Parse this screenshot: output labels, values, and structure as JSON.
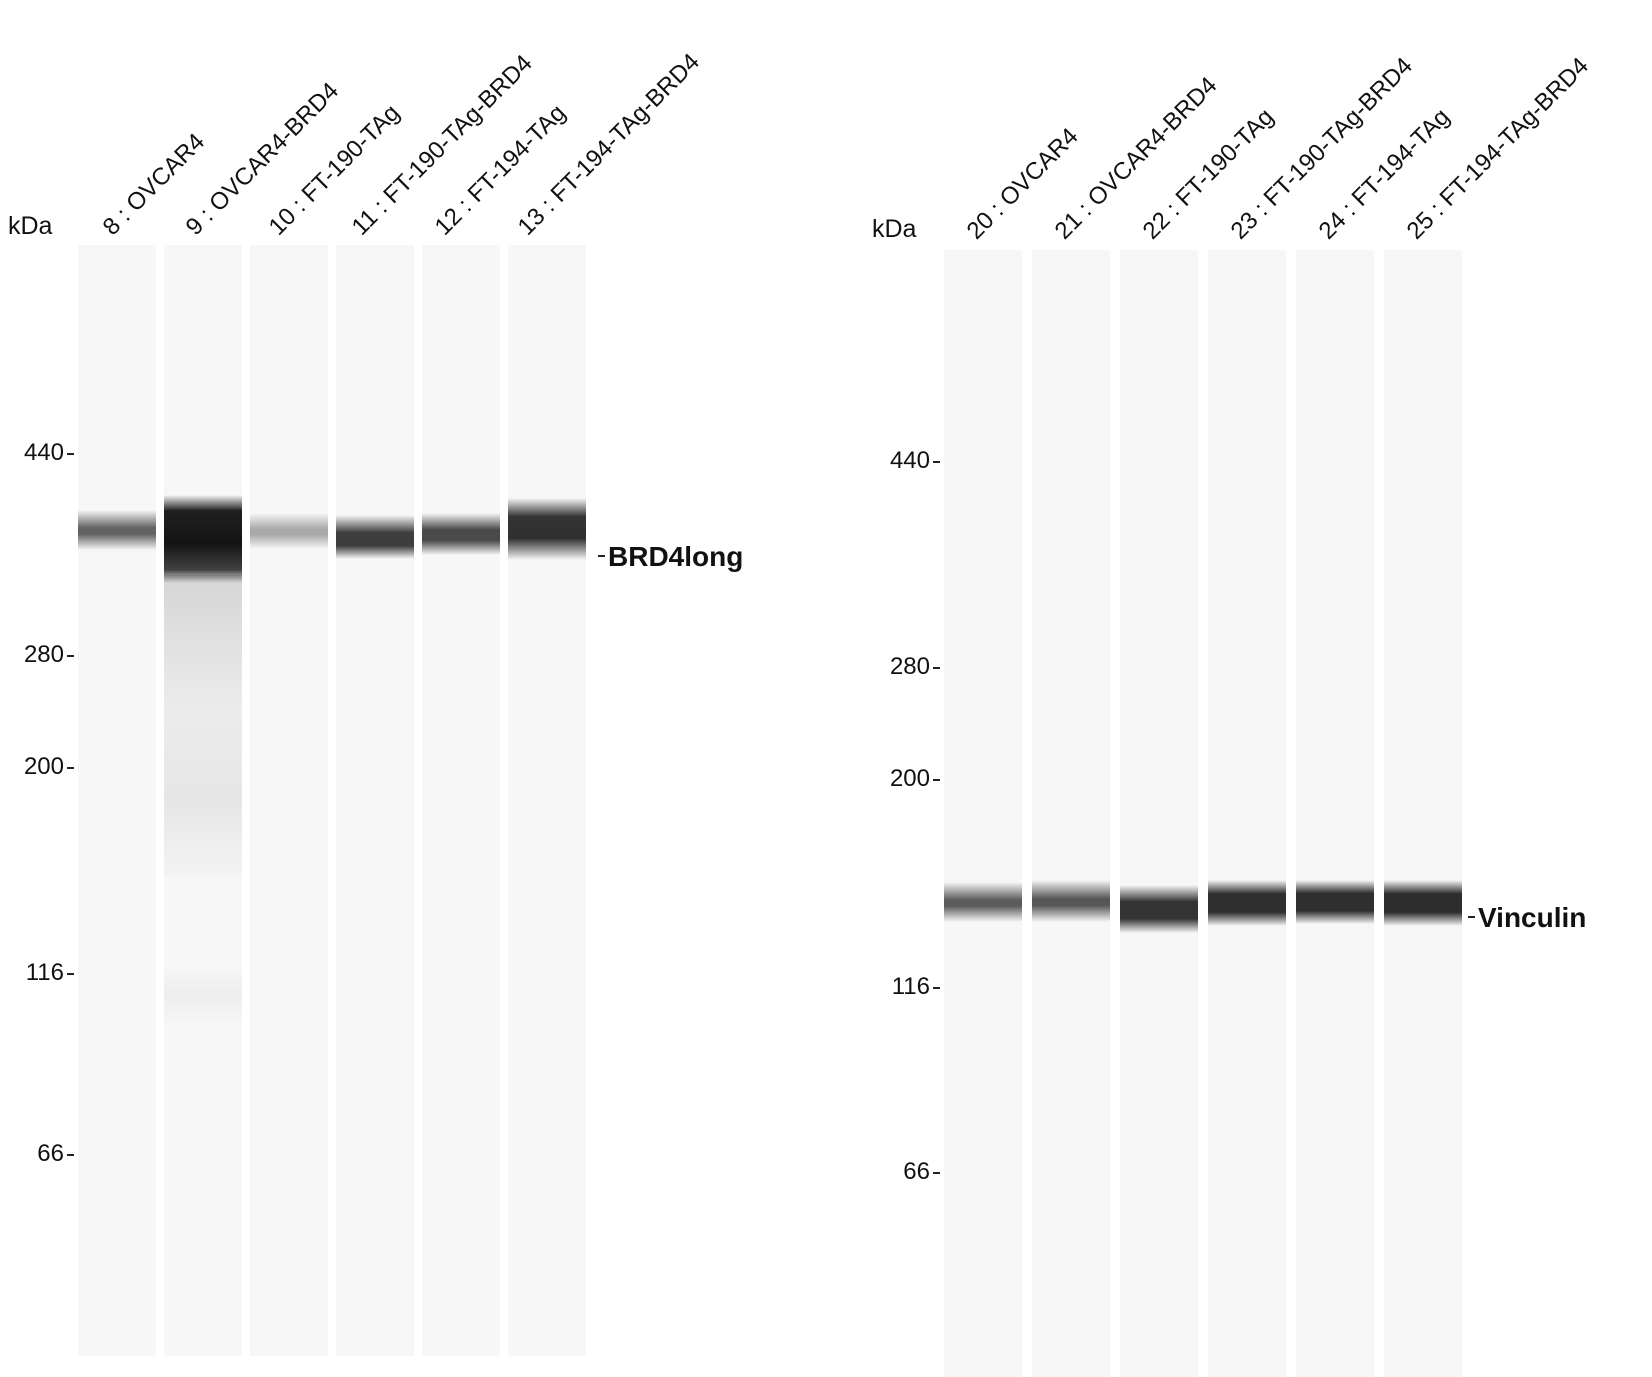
{
  "units_label": "kDa",
  "blots": [
    {
      "target": "BRD4long",
      "markers": [
        "440",
        "280",
        "200",
        "116",
        "66"
      ],
      "lanes": [
        {
          "label": "8 : OVCAR4",
          "intensity": 0.72
        },
        {
          "label": "9 : OVCAR4-BRD4",
          "intensity": 1.0
        },
        {
          "label": "10 : FT-190-TAg",
          "intensity": 0.38
        },
        {
          "label": "11 : FT-190-TAg-BRD4",
          "intensity": 0.85
        },
        {
          "label": "12 : FT-194-TAg",
          "intensity": 0.8
        },
        {
          "label": "13 : FT-194-TAg-BRD4",
          "intensity": 0.9
        }
      ]
    },
    {
      "target": "Vinculin",
      "markers": [
        "440",
        "280",
        "200",
        "116",
        "66"
      ],
      "lanes": [
        {
          "label": "20 : OVCAR4",
          "intensity": 0.75
        },
        {
          "label": "21 : OVCAR4-BRD4",
          "intensity": 0.78
        },
        {
          "label": "22 : FT-190-TAg",
          "intensity": 0.9
        },
        {
          "label": "23 : FT-190-TAg-BRD4",
          "intensity": 0.92
        },
        {
          "label": "24 : FT-194-TAg",
          "intensity": 0.92
        },
        {
          "label": "25 : FT-194-TAg-BRD4",
          "intensity": 0.93
        }
      ]
    }
  ]
}
